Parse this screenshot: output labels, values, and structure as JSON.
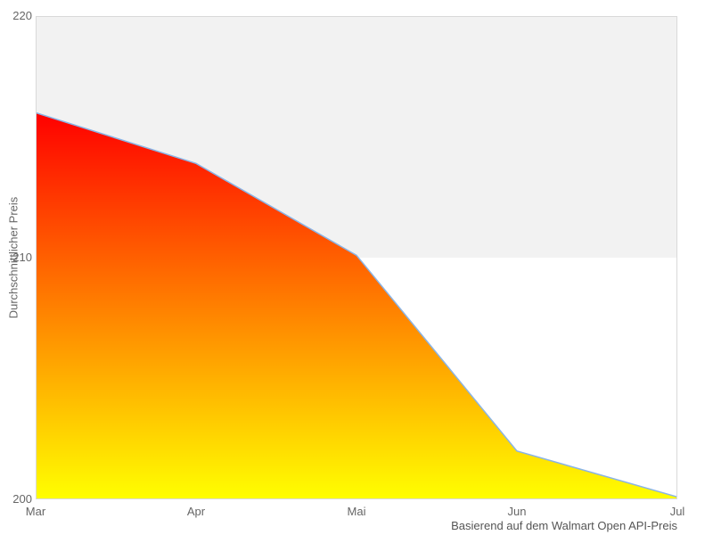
{
  "chart_data": {
    "type": "area",
    "title": "",
    "xlabel": "",
    "ylabel": "Durchschnittlicher Preis",
    "caption": "Basierend auf dem Walmart Open API-Preis",
    "categories": [
      "Mar",
      "Apr",
      "Mai",
      "Jun",
      "Jul"
    ],
    "series": [
      {
        "name": "Durchschnittlicher Preis",
        "values": [
          216.0,
          213.9,
          210.1,
          202.0,
          200.1
        ]
      }
    ],
    "ylim": [
      200,
      220
    ],
    "yticks": [
      220,
      210,
      200
    ],
    "grid": false,
    "legend_position": "none",
    "plot_band": {
      "from": 210,
      "to": 220,
      "color": "#f2f2f2"
    },
    "colors": {
      "line": "#8ab4e6",
      "area_gradient_top": "#ff0000",
      "area_gradient_bottom": "#ffff00",
      "plot_border": "#d9d9d9",
      "tick_label": "#666666",
      "axis_title": "#666666",
      "caption": "#555555",
      "background": "#ffffff"
    }
  }
}
